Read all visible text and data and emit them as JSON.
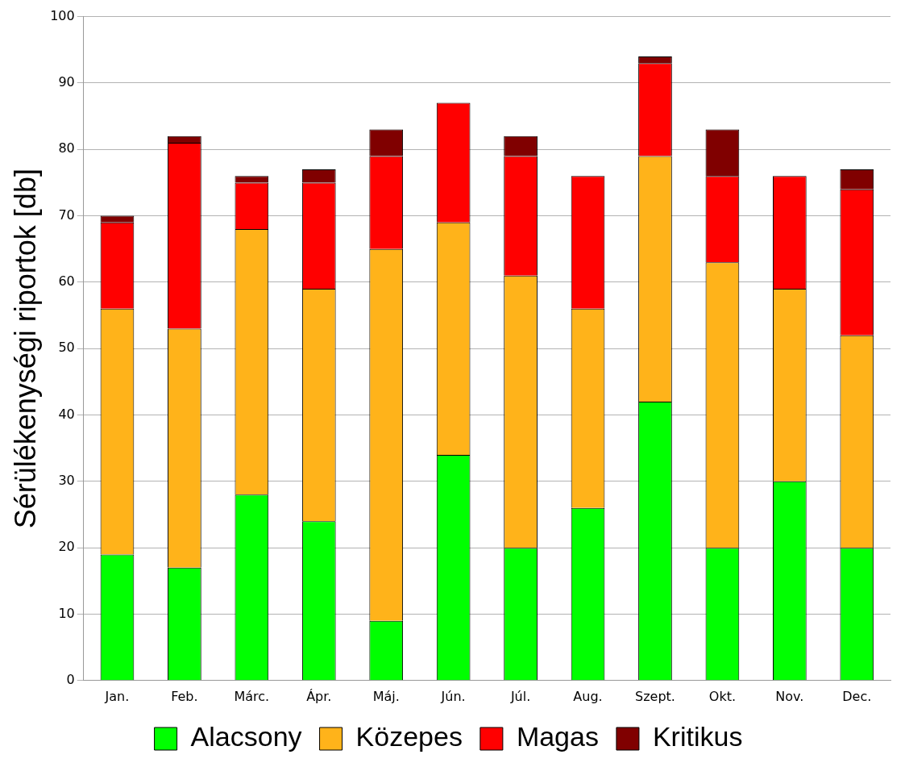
{
  "chart_data": {
    "type": "bar",
    "ylabel": "Sérülékenységi riportok [db]",
    "categories": [
      "Jan.",
      "Feb.",
      "Márc.",
      "Ápr.",
      "Máj.",
      "Jún.",
      "Júl.",
      "Aug.",
      "Szept.",
      "Okt.",
      "Nov.",
      "Dec."
    ],
    "series": [
      {
        "name": "Alacsony",
        "color": "#00ff00",
        "values": [
          19,
          17,
          28,
          24,
          9,
          34,
          20,
          26,
          42,
          20,
          30,
          20
        ]
      },
      {
        "name": "Közepes",
        "color": "#ffb31a",
        "values": [
          37,
          36,
          40,
          35,
          56,
          35,
          41,
          30,
          37,
          43,
          29,
          32
        ]
      },
      {
        "name": "Magas",
        "color": "#ff0000",
        "values": [
          13,
          28,
          7,
          16,
          14,
          18,
          18,
          20,
          14,
          13,
          17,
          22
        ]
      },
      {
        "name": "Kritikus",
        "color": "#800000",
        "values": [
          1,
          1,
          1,
          2,
          4,
          0,
          3,
          0,
          1,
          7,
          0,
          3
        ]
      }
    ],
    "stacked": true,
    "ylim": [
      0,
      100
    ],
    "yticks": [
      0,
      10,
      20,
      30,
      40,
      50,
      60,
      70,
      80,
      90,
      100
    ],
    "grid": "y",
    "legend": "bottom"
  }
}
